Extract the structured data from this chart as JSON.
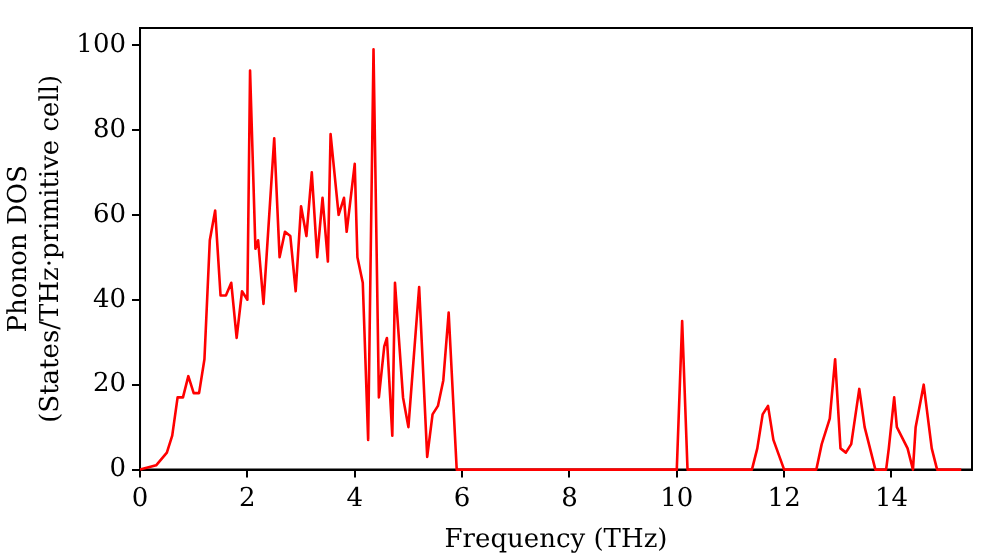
{
  "chart_data": {
    "type": "line",
    "xlabel": "Frequency (THz)",
    "ylabel": "Phonon DOS\n(States/THz·primitive cell)",
    "xlim": [
      0,
      15.5
    ],
    "ylim": [
      0,
      104
    ],
    "xticks": [
      0,
      2,
      4,
      6,
      8,
      10,
      12,
      14
    ],
    "yticks": [
      0,
      20,
      40,
      60,
      80,
      100
    ],
    "grid": false,
    "legend": false,
    "marker": "none",
    "line_style": "solid",
    "series": [
      {
        "color": "#ff0000",
        "x": [
          0,
          0.3,
          0.5,
          0.6,
          0.7,
          0.8,
          0.9,
          1.0,
          1.1,
          1.2,
          1.3,
          1.4,
          1.5,
          1.6,
          1.7,
          1.8,
          1.9,
          2.0,
          2.05,
          2.15,
          2.2,
          2.3,
          2.5,
          2.6,
          2.7,
          2.8,
          2.9,
          3.0,
          3.1,
          3.2,
          3.3,
          3.4,
          3.5,
          3.55,
          3.7,
          3.8,
          3.85,
          4.0,
          4.05,
          4.15,
          4.25,
          4.35,
          4.45,
          4.55,
          4.6,
          4.7,
          4.75,
          4.9,
          5.0,
          5.2,
          5.35,
          5.45,
          5.55,
          5.65,
          5.75,
          5.9,
          10.0,
          10.1,
          10.2,
          11.4,
          11.5,
          11.6,
          11.7,
          11.8,
          12.0,
          12.6,
          12.7,
          12.85,
          12.95,
          13.05,
          13.15,
          13.25,
          13.4,
          13.5,
          13.7,
          13.9,
          13.95,
          14.05,
          14.1,
          14.3,
          14.4,
          14.45,
          14.6,
          14.75,
          14.85,
          15.3
        ],
        "values": [
          0,
          1,
          4,
          8,
          17,
          17,
          22,
          18,
          18,
          26,
          54,
          61,
          41,
          41,
          44,
          31,
          42,
          40,
          94,
          52,
          54,
          39,
          78,
          50,
          56,
          55,
          42,
          62,
          55,
          70,
          50,
          64,
          49,
          79,
          60,
          64,
          56,
          72,
          50,
          44,
          7,
          99,
          17,
          29,
          31,
          8,
          44,
          17,
          10,
          43,
          3,
          13,
          15,
          21,
          37,
          0,
          0,
          35,
          0,
          0,
          5,
          13,
          15,
          7,
          0,
          0,
          6,
          12,
          26,
          5,
          4,
          6,
          19,
          10,
          0,
          0,
          5,
          17,
          10,
          5,
          0,
          10,
          20,
          5,
          0,
          0
        ]
      }
    ]
  }
}
